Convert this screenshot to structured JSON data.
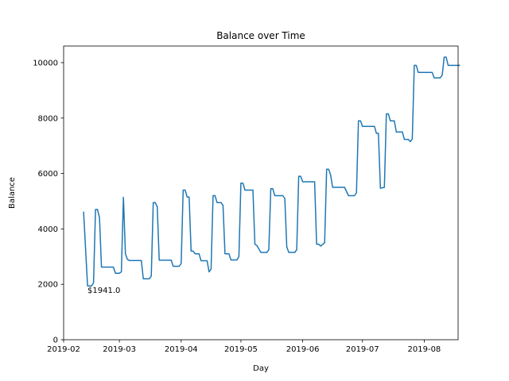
{
  "chart_data": {
    "type": "line",
    "title": "Balance over Time",
    "xlabel": "Day",
    "ylabel": "Balance",
    "xlim": [
      "2019-02-01",
      "2019-08-18"
    ],
    "ylim": [
      0,
      10600
    ],
    "x_ticks": [
      "2019-02",
      "2019-03",
      "2019-04",
      "2019-05",
      "2019-06",
      "2019-07",
      "2019-08"
    ],
    "y_ticks": [
      0,
      2000,
      4000,
      6000,
      8000,
      10000
    ],
    "grid": false,
    "line_color": "#1f77b4",
    "annotation": {
      "text": "$1941.0",
      "x": "2019-02-13",
      "y": 1941
    },
    "series": [
      {
        "points": [
          [
            "2019-02-11",
            4620
          ],
          [
            "2019-02-13",
            1941
          ],
          [
            "2019-02-15",
            1941
          ],
          [
            "2019-02-16",
            2050
          ],
          [
            "2019-02-17",
            4700
          ],
          [
            "2019-02-18",
            4700
          ],
          [
            "2019-02-19",
            4400
          ],
          [
            "2019-02-20",
            2620
          ],
          [
            "2019-02-23",
            2620
          ],
          [
            "2019-02-26",
            2620
          ],
          [
            "2019-02-27",
            2400
          ],
          [
            "2019-02-28",
            2400
          ],
          [
            "2019-03-01",
            2400
          ],
          [
            "2019-03-02",
            2450
          ],
          [
            "2019-03-03",
            5140
          ],
          [
            "2019-03-04",
            3100
          ],
          [
            "2019-03-05",
            2900
          ],
          [
            "2019-03-06",
            2860
          ],
          [
            "2019-03-10",
            2860
          ],
          [
            "2019-03-12",
            2860
          ],
          [
            "2019-03-13",
            2200
          ],
          [
            "2019-03-16",
            2200
          ],
          [
            "2019-03-17",
            2300
          ],
          [
            "2019-03-18",
            4950
          ],
          [
            "2019-03-19",
            4950
          ],
          [
            "2019-03-20",
            4800
          ],
          [
            "2019-03-21",
            2870
          ],
          [
            "2019-03-24",
            2870
          ],
          [
            "2019-03-27",
            2870
          ],
          [
            "2019-03-28",
            2650
          ],
          [
            "2019-03-31",
            2650
          ],
          [
            "2019-04-01",
            2750
          ],
          [
            "2019-04-02",
            5400
          ],
          [
            "2019-04-03",
            5400
          ],
          [
            "2019-04-04",
            5150
          ],
          [
            "2019-04-05",
            5150
          ],
          [
            "2019-04-06",
            3200
          ],
          [
            "2019-04-07",
            3200
          ],
          [
            "2019-04-08",
            3100
          ],
          [
            "2019-04-10",
            3100
          ],
          [
            "2019-04-11",
            2850
          ],
          [
            "2019-04-14",
            2850
          ],
          [
            "2019-04-15",
            2450
          ],
          [
            "2019-04-16",
            2550
          ],
          [
            "2019-04-17",
            5200
          ],
          [
            "2019-04-18",
            5200
          ],
          [
            "2019-04-19",
            4950
          ],
          [
            "2019-04-21",
            4950
          ],
          [
            "2019-04-22",
            4850
          ],
          [
            "2019-04-23",
            3100
          ],
          [
            "2019-04-25",
            3100
          ],
          [
            "2019-04-26",
            2880
          ],
          [
            "2019-04-29",
            2880
          ],
          [
            "2019-04-30",
            3000
          ],
          [
            "2019-05-01",
            5650
          ],
          [
            "2019-05-02",
            5650
          ],
          [
            "2019-05-03",
            5400
          ],
          [
            "2019-05-07",
            5400
          ],
          [
            "2019-05-08",
            3450
          ],
          [
            "2019-05-09",
            3400
          ],
          [
            "2019-05-11",
            3150
          ],
          [
            "2019-05-14",
            3150
          ],
          [
            "2019-05-15",
            3250
          ],
          [
            "2019-05-16",
            5450
          ],
          [
            "2019-05-17",
            5450
          ],
          [
            "2019-05-18",
            5200
          ],
          [
            "2019-05-22",
            5200
          ],
          [
            "2019-05-23",
            5100
          ],
          [
            "2019-05-24",
            3350
          ],
          [
            "2019-05-25",
            3150
          ],
          [
            "2019-05-28",
            3150
          ],
          [
            "2019-05-29",
            3250
          ],
          [
            "2019-05-30",
            5900
          ],
          [
            "2019-05-31",
            5900
          ],
          [
            "2019-06-01",
            5700
          ],
          [
            "2019-06-07",
            5700
          ],
          [
            "2019-06-08",
            3450
          ],
          [
            "2019-06-09",
            3450
          ],
          [
            "2019-06-10",
            3380
          ],
          [
            "2019-06-12",
            3500
          ],
          [
            "2019-06-13",
            6150
          ],
          [
            "2019-06-14",
            6150
          ],
          [
            "2019-06-15",
            5950
          ],
          [
            "2019-06-16",
            5500
          ],
          [
            "2019-06-22",
            5500
          ],
          [
            "2019-06-24",
            5200
          ],
          [
            "2019-06-27",
            5200
          ],
          [
            "2019-06-28",
            5300
          ],
          [
            "2019-06-29",
            7900
          ],
          [
            "2019-06-30",
            7900
          ],
          [
            "2019-07-01",
            7700
          ],
          [
            "2019-07-07",
            7700
          ],
          [
            "2019-07-08",
            7450
          ],
          [
            "2019-07-09",
            7450
          ],
          [
            "2019-07-10",
            5470
          ],
          [
            "2019-07-12",
            5500
          ],
          [
            "2019-07-13",
            8150
          ],
          [
            "2019-07-14",
            8150
          ],
          [
            "2019-07-15",
            7900
          ],
          [
            "2019-07-17",
            7900
          ],
          [
            "2019-07-18",
            7500
          ],
          [
            "2019-07-21",
            7500
          ],
          [
            "2019-07-22",
            7230
          ],
          [
            "2019-07-24",
            7230
          ],
          [
            "2019-07-25",
            7150
          ],
          [
            "2019-07-26",
            7250
          ],
          [
            "2019-07-27",
            9900
          ],
          [
            "2019-07-28",
            9900
          ],
          [
            "2019-07-29",
            9650
          ],
          [
            "2019-08-05",
            9650
          ],
          [
            "2019-08-06",
            9450
          ],
          [
            "2019-08-09",
            9450
          ],
          [
            "2019-08-10",
            9550
          ],
          [
            "2019-08-11",
            10200
          ],
          [
            "2019-08-12",
            10200
          ],
          [
            "2019-08-13",
            9900
          ],
          [
            "2019-08-19",
            9900
          ]
        ]
      }
    ]
  }
}
